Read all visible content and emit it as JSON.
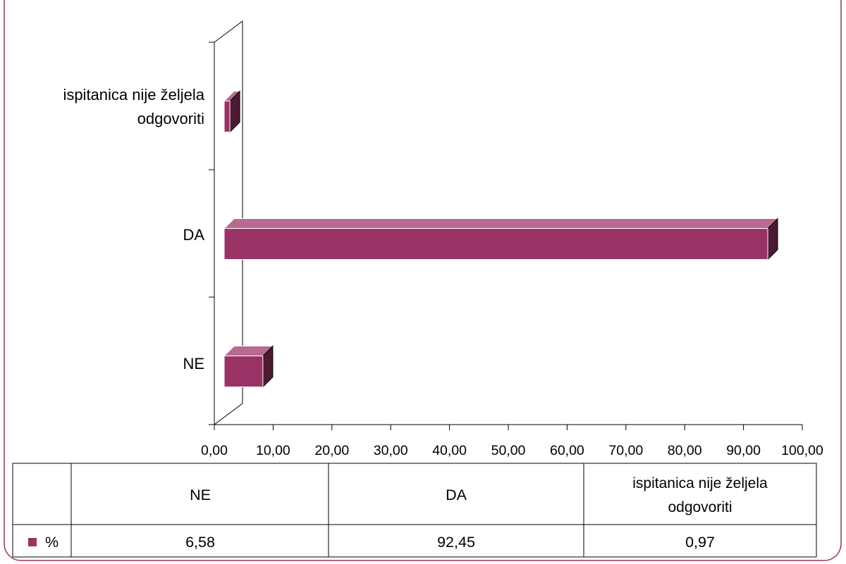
{
  "chart_data": {
    "type": "bar",
    "orientation": "horizontal",
    "three_d": true,
    "categories": [
      "NE",
      "DA",
      "ispitanica nije željela odgovoriti"
    ],
    "series": [
      {
        "name": "%",
        "values": [
          6.58,
          92.45,
          0.97
        ],
        "color": "#993366"
      }
    ],
    "xlim": [
      0,
      100
    ],
    "x_ticks": [
      "0,00",
      "10,00",
      "20,00",
      "30,00",
      "40,00",
      "50,00",
      "60,00",
      "70,00",
      "80,00",
      "90,00",
      "100,00"
    ],
    "grid": false,
    "legend": "data-table-bottom"
  },
  "data_table": {
    "headers": [
      "NE",
      "DA",
      "ispitanica nije željela odgovoriti"
    ],
    "series_label": "%",
    "values": [
      "6,58",
      "92,45",
      "0,97"
    ]
  },
  "colors": {
    "frame": "#993366",
    "bar_front": "#993366",
    "bar_top": "#b86a92",
    "bar_side": "#4d1a33"
  }
}
